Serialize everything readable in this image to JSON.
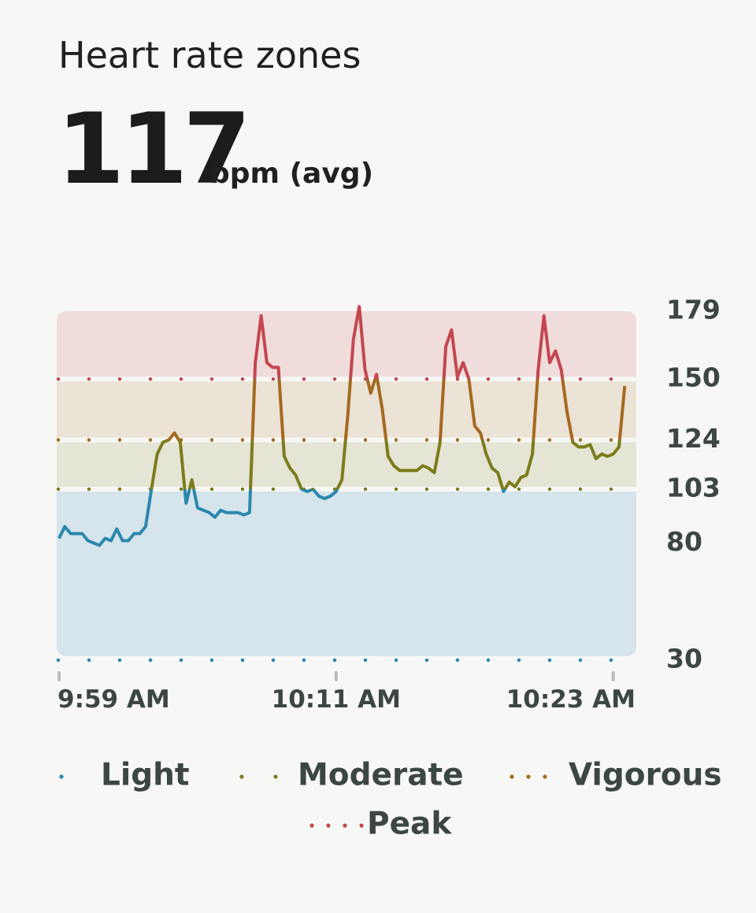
{
  "chart_data": {
    "type": "line",
    "title": "Heart rate zones",
    "summary": {
      "value": 117,
      "unit": "bpm (avg)"
    },
    "categories": [
      "9:59 AM",
      null,
      null,
      null,
      null,
      null,
      null,
      null,
      null,
      null,
      null,
      null,
      null,
      null,
      null,
      null,
      null,
      null,
      null,
      null,
      null,
      null,
      null,
      null,
      null,
      null,
      null,
      null,
      null,
      null,
      null,
      null,
      null,
      null,
      null,
      null,
      null,
      null,
      null,
      null,
      null,
      null,
      null,
      null,
      null,
      null,
      null,
      null,
      "10:11 AM",
      null,
      null,
      null,
      null,
      null,
      null,
      null,
      null,
      null,
      null,
      null,
      null,
      null,
      null,
      null,
      null,
      null,
      null,
      null,
      null,
      null,
      null,
      null,
      null,
      null,
      null,
      null,
      null,
      null,
      null,
      null,
      null,
      null,
      null,
      null,
      null,
      null,
      null,
      null,
      null,
      null,
      null,
      null,
      null,
      null,
      null,
      null,
      "10:23 AM",
      null,
      null
    ],
    "values": [
      82,
      87,
      84,
      84,
      84,
      81,
      80,
      79,
      82,
      81,
      86,
      81,
      81,
      84,
      84,
      87,
      103,
      118,
      123,
      124,
      127,
      123,
      97,
      107,
      95,
      94,
      93,
      91,
      94,
      93,
      93,
      93,
      92,
      93,
      157,
      177,
      157,
      155,
      155,
      117,
      112,
      109,
      103,
      102,
      103,
      100,
      99,
      100,
      102,
      107,
      134,
      167,
      181,
      154,
      144,
      152,
      137,
      117,
      113,
      111,
      111,
      111,
      111,
      113,
      112,
      110,
      123,
      164,
      171,
      151,
      157,
      150,
      130,
      127,
      118,
      112,
      110,
      102,
      106,
      104,
      108,
      109,
      118,
      154,
      177,
      157,
      162,
      154,
      136,
      123,
      121,
      121,
      122,
      116,
      118,
      117,
      118,
      121,
      147
    ],
    "ylim": [
      30,
      179
    ],
    "yticks": [
      30,
      80,
      103,
      124,
      150,
      179
    ],
    "zones": [
      {
        "name": "Light",
        "from": 30,
        "color": "#2a88ad",
        "band_color": "#d6e4eb"
      },
      {
        "name": "Moderate",
        "from": 103,
        "color": "#7d7c1c",
        "band_color": "#e4e5d5"
      },
      {
        "name": "Vigorous",
        "from": 124,
        "color": "#a5691f",
        "band_color": "#ebe3d5"
      },
      {
        "name": "Peak",
        "from": 150,
        "color": "#c4464f",
        "band_color": "#f0dddb"
      }
    ]
  }
}
